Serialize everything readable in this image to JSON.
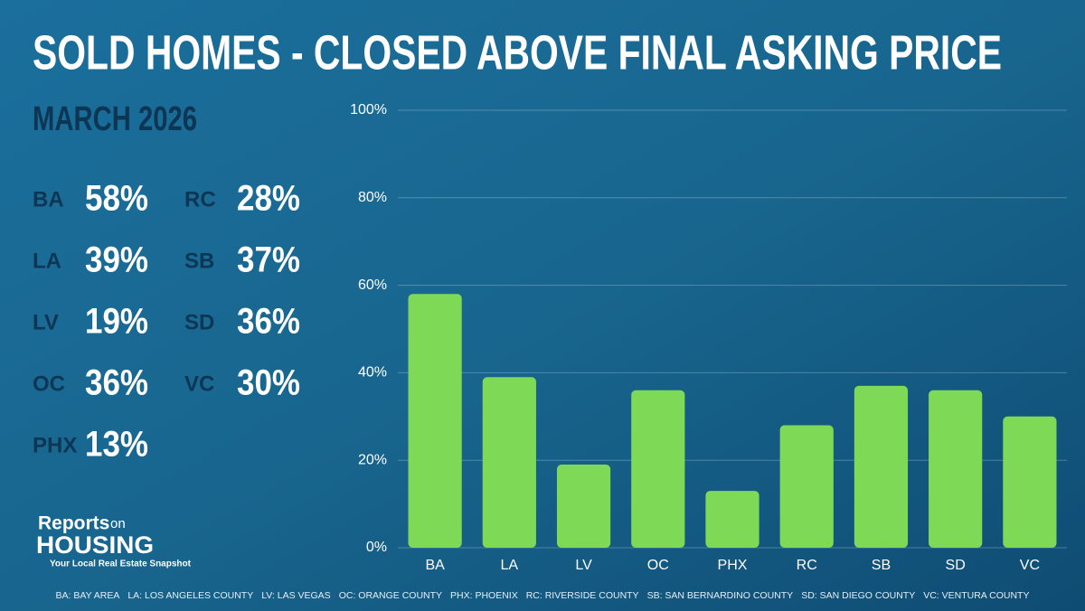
{
  "chart_data": {
    "type": "bar",
    "title": "SOLD HOMES - CLOSED ABOVE FINAL ASKING PRICE",
    "subtitle": "MARCH 2026",
    "categories": [
      "BA",
      "LA",
      "LV",
      "OC",
      "PHX",
      "RC",
      "SB",
      "SD",
      "VC"
    ],
    "values": [
      58,
      39,
      19,
      36,
      13,
      28,
      37,
      36,
      30
    ],
    "value_labels": [
      "58%",
      "39%",
      "19%",
      "36%",
      "13%",
      "28%",
      "37%",
      "36%",
      "30%"
    ],
    "color": "#7ed957",
    "ylim": [
      0,
      100
    ],
    "yticks": [
      {
        "value": 0,
        "label": "0%"
      },
      {
        "value": 20,
        "label": "20%"
      },
      {
        "value": 40,
        "label": "40%"
      },
      {
        "value": 60,
        "label": "60%"
      },
      {
        "value": 80,
        "label": "80%"
      },
      {
        "value": 100,
        "label": "100%"
      }
    ],
    "grid": true,
    "notes": [
      "BA: BAY AREA",
      "LA: LOS ANGELES COUNTY",
      "LV: LAS VEGAS",
      "OC: ORANGE COUNTY",
      "PHX: PHOENIX",
      "RC: RIVERSIDE COUNTY",
      "SB: SAN BERNARDINO COUNTY",
      "SD: SAN DIEGO COUNTY",
      "VC: VENTURA COUNTY"
    ]
  },
  "branding": {
    "name_top": "Reports",
    "name_on": "on",
    "name_bottom": "HOUSING",
    "tagline": "Your Local Real Estate Snapshot"
  }
}
